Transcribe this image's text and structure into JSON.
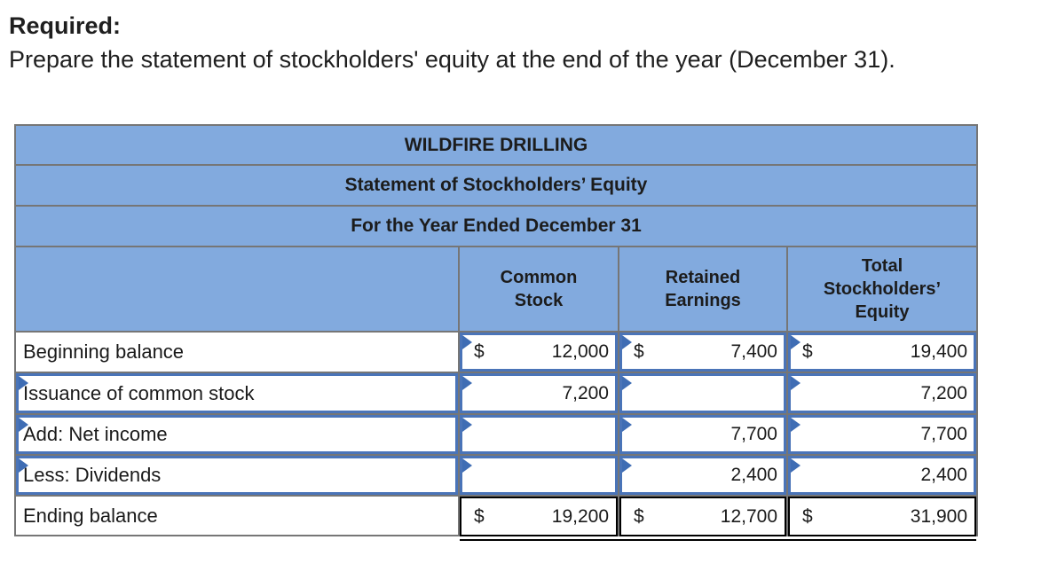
{
  "page": {
    "required_label": "Required:",
    "instruction": "Prepare the statement of stockholders' equity at the end of the year (December 31)."
  },
  "table": {
    "title": "WILDFIRE DRILLING",
    "subtitle": "Statement of Stockholders’ Equity",
    "period": "For the Year Ended December 31",
    "columns": [
      {
        "id": "common-stock",
        "lines": [
          "Common",
          "Stock"
        ]
      },
      {
        "id": "retained-earnings",
        "lines": [
          "Retained",
          "Earnings"
        ]
      },
      {
        "id": "total-stockholders-equity",
        "lines": [
          "Total",
          "Stockholders’",
          "Equity"
        ]
      }
    ],
    "rows": [
      {
        "id": "beginning-balance",
        "label": "Beginning balance",
        "label_input": false,
        "style": "normal",
        "cells": [
          {
            "currency": "$",
            "value": "12,000",
            "input": true
          },
          {
            "currency": "$",
            "value": "7,400",
            "input": true
          },
          {
            "currency": "$",
            "value": "19,400",
            "input": true
          }
        ]
      },
      {
        "id": "issuance-of-common-stock",
        "label": "Issuance of common stock",
        "label_input": true,
        "style": "normal",
        "cells": [
          {
            "currency": "",
            "value": "7,200",
            "input": true
          },
          {
            "currency": "",
            "value": "",
            "input": true
          },
          {
            "currency": "",
            "value": "7,200",
            "input": true
          }
        ]
      },
      {
        "id": "add-net-income",
        "label": "Add: Net income",
        "label_input": true,
        "style": "normal",
        "cells": [
          {
            "currency": "",
            "value": "",
            "input": true
          },
          {
            "currency": "",
            "value": "7,700",
            "input": true
          },
          {
            "currency": "",
            "value": "7,700",
            "input": true
          }
        ]
      },
      {
        "id": "less-dividends",
        "label": "Less: Dividends",
        "label_input": true,
        "style": "normal",
        "cells": [
          {
            "currency": "",
            "value": "",
            "input": true
          },
          {
            "currency": "",
            "value": "2,400",
            "input": true
          },
          {
            "currency": "",
            "value": "2,400",
            "input": true
          }
        ]
      },
      {
        "id": "ending-balance",
        "label": "Ending balance",
        "label_input": false,
        "style": "total",
        "cells": [
          {
            "currency": "$",
            "value": "19,200",
            "input": false
          },
          {
            "currency": "$",
            "value": "12,700",
            "input": false
          },
          {
            "currency": "$",
            "value": "31,900",
            "input": false
          }
        ]
      }
    ],
    "colors": {
      "header_bg": "#82aade",
      "input_border": "#4a74b8",
      "marker_blue": "#3f6db4",
      "grid_gray": "#767676"
    }
  }
}
